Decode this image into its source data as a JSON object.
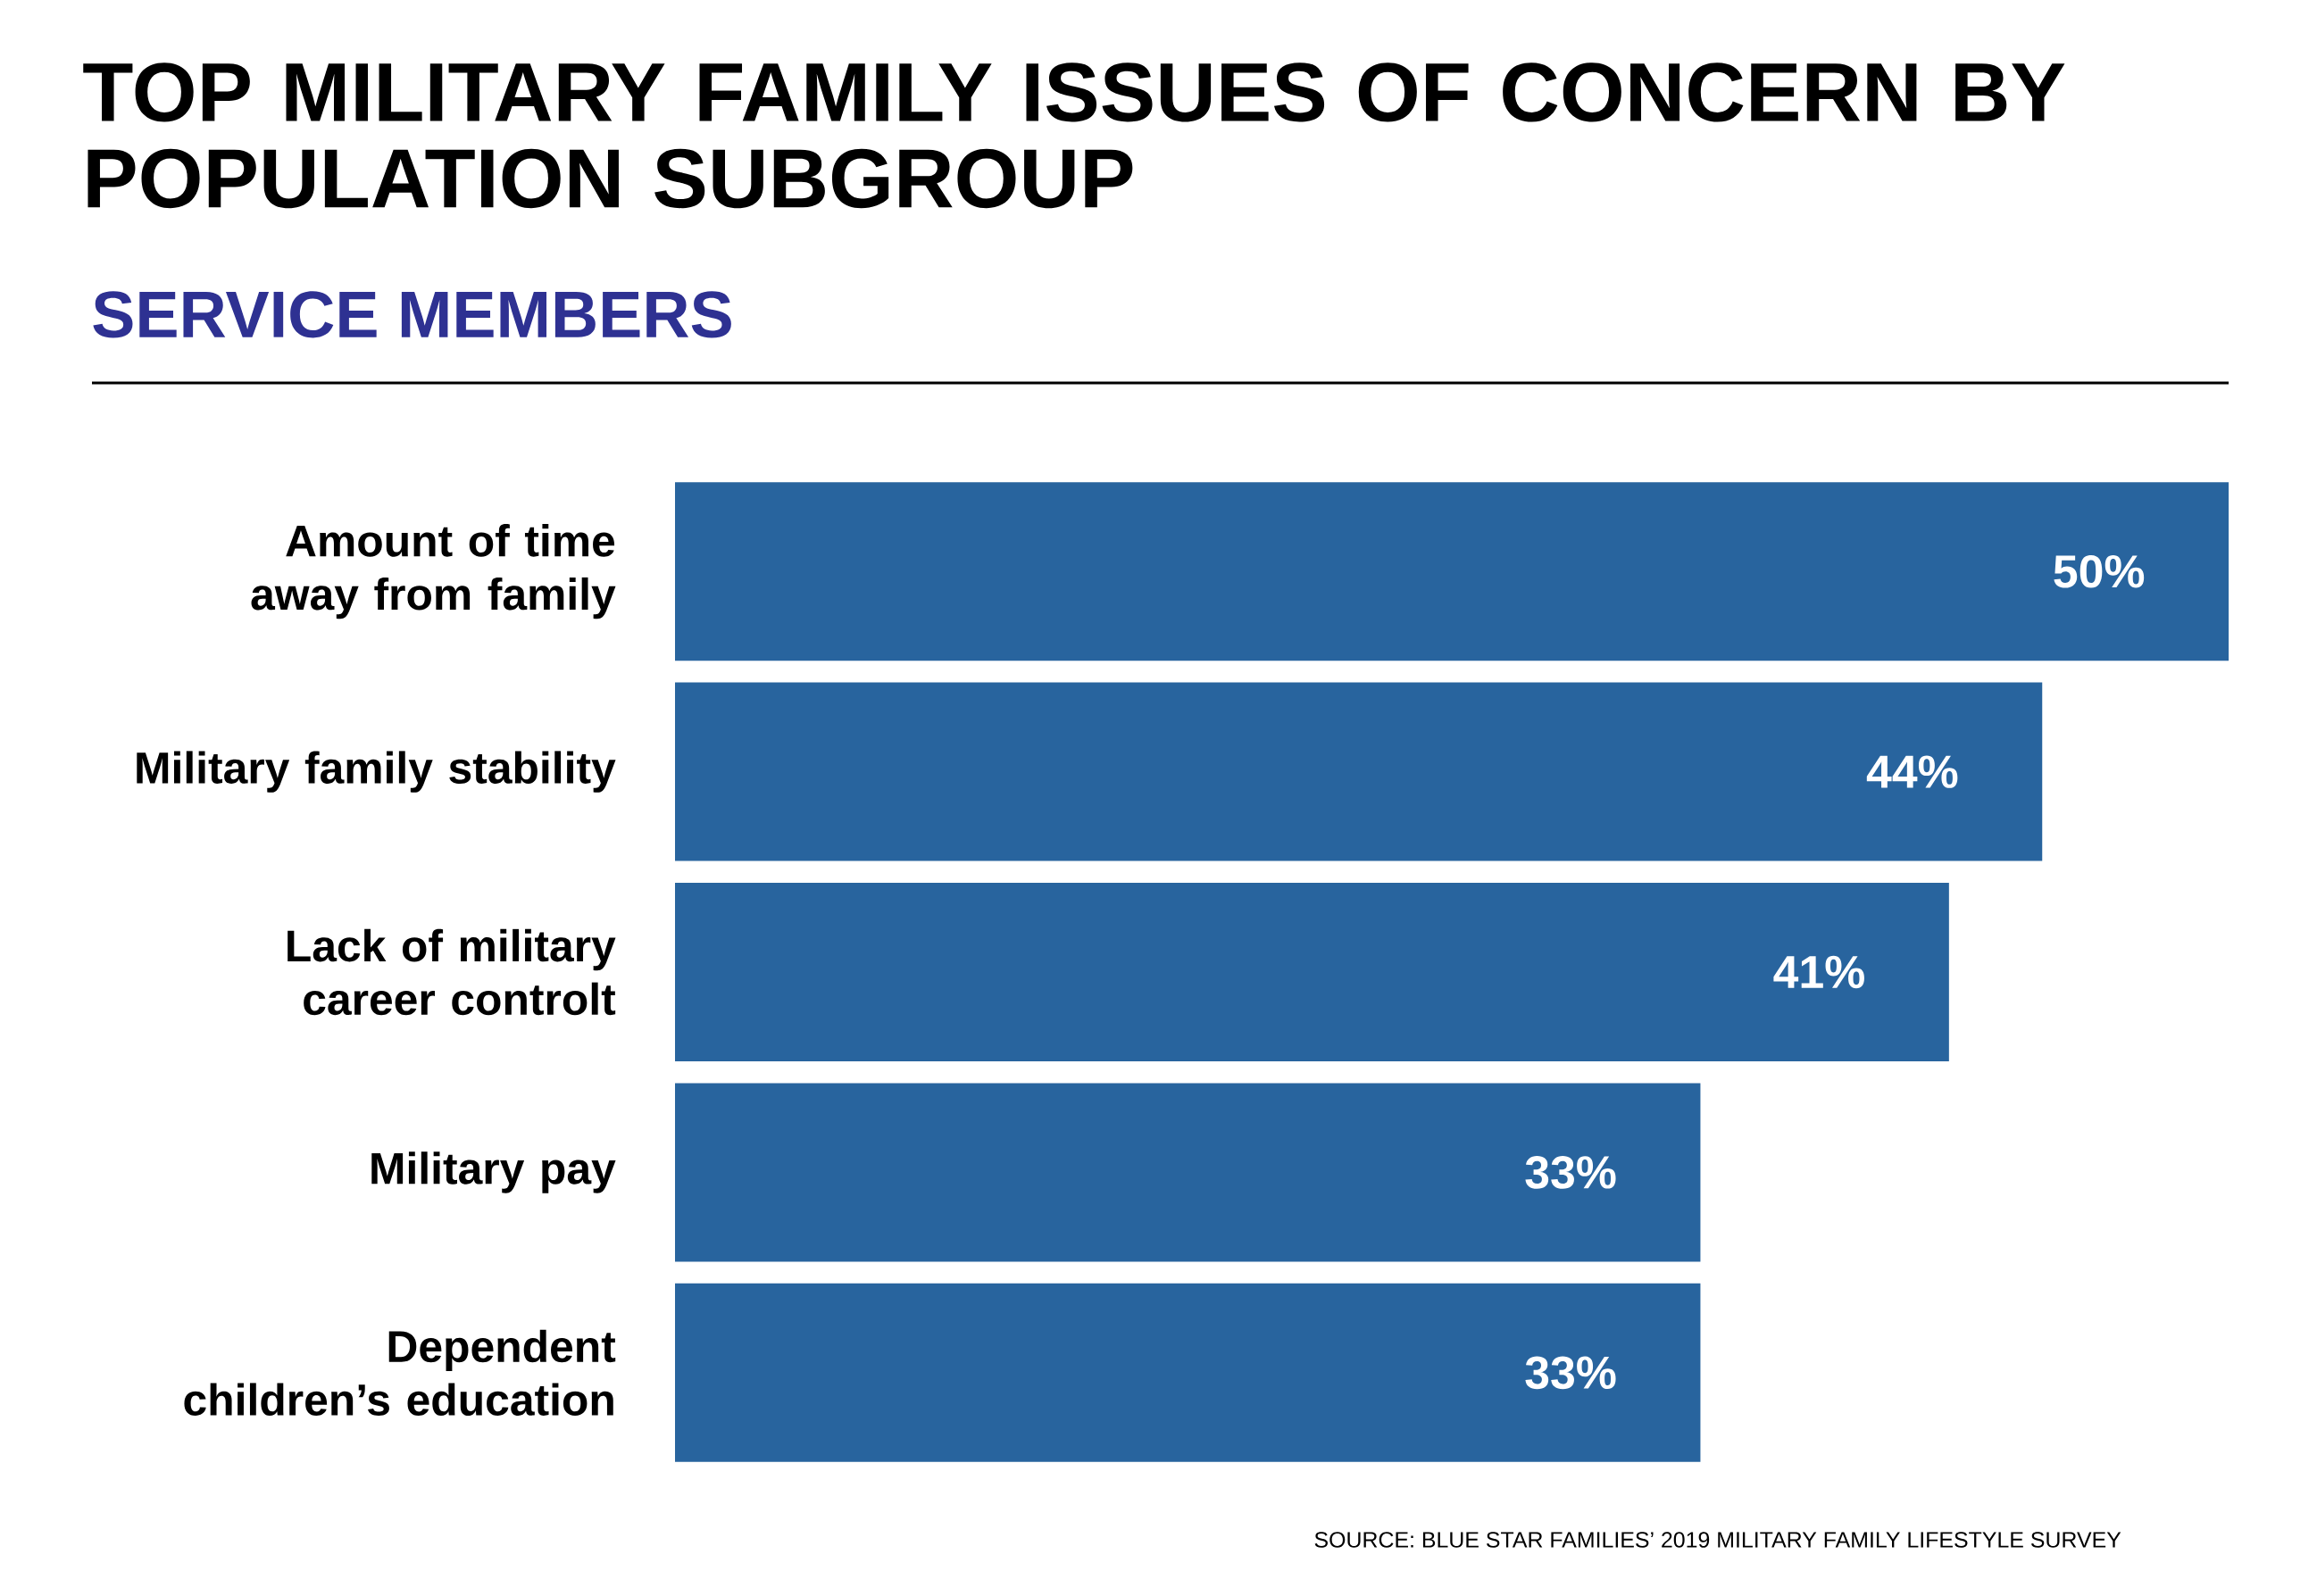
{
  "chart_data": {
    "type": "bar",
    "orientation": "horizontal",
    "title": "TOP MILITARY FAMILY ISSUES OF CONCERN BY POPULATION SUBGROUP",
    "subtitle": "SERVICE MEMBERS",
    "categories": [
      "Amount of time away from family",
      "Military family stability",
      "Lack of military career controlt",
      "Military pay",
      "Dependent children’s education"
    ],
    "values": [
      50,
      44,
      41,
      33,
      33
    ],
    "value_labels": [
      "50%",
      "44%",
      "41%",
      "33%",
      "33%"
    ],
    "color": "#28649e",
    "annotations": [
      "SOURCE: BLUE STAR FAMILIES’ 2019 MILITARY FAMILY LIFESTYLE SURVEY"
    ]
  }
}
